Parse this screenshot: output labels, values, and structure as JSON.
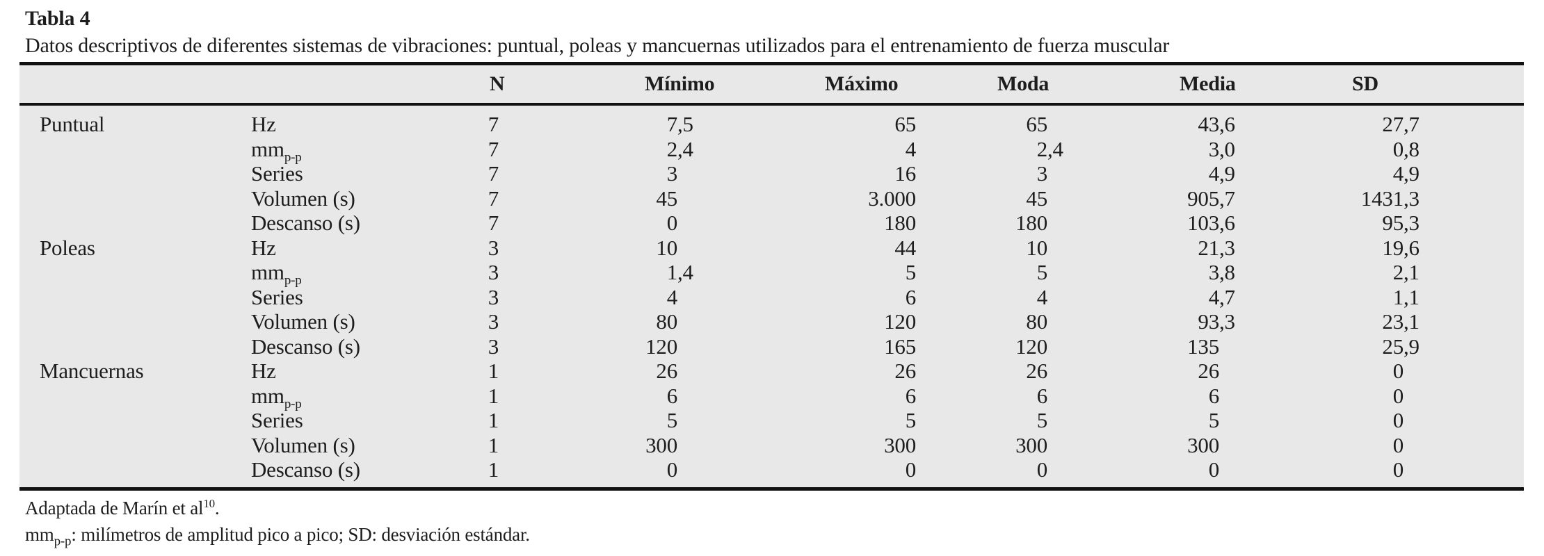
{
  "title": "Tabla 4",
  "subtitle": "Datos descriptivos de diferentes sistemas de vibraciones: puntual, poleas y mancuernas utilizados para el entrenamiento de fuerza muscular",
  "table": {
    "columns": [
      "N",
      "Mínimo",
      "Máximo",
      "Moda",
      "Media",
      "SD"
    ],
    "column_keys": [
      "n",
      "minimo",
      "maximo",
      "moda",
      "media",
      "sd"
    ],
    "groups": [
      {
        "name": "Puntual",
        "rows": [
          {
            "param": "Hz",
            "sub": "",
            "values": [
              "7",
              "7,5",
              "65",
              "65",
              "43,6",
              "27,7"
            ]
          },
          {
            "param": "mm",
            "sub": "p-p",
            "values": [
              "7",
              "2,4",
              "4",
              "2,4",
              "3,0",
              "0,8"
            ]
          },
          {
            "param": "Series",
            "sub": "",
            "values": [
              "7",
              "3",
              "16",
              "3",
              "4,9",
              "4,9"
            ]
          },
          {
            "param": "Volumen (s)",
            "sub": "",
            "values": [
              "7",
              "45",
              "3.000",
              "45",
              "905,7",
              "1431,3"
            ]
          },
          {
            "param": "Descanso (s)",
            "sub": "",
            "values": [
              "7",
              "0",
              "180",
              "180",
              "103,6",
              "95,3"
            ]
          }
        ]
      },
      {
        "name": "Poleas",
        "rows": [
          {
            "param": "Hz",
            "sub": "",
            "values": [
              "3",
              "10",
              "44",
              "10",
              "21,3",
              "19,6"
            ]
          },
          {
            "param": "mm",
            "sub": "p-p",
            "values": [
              "3",
              "1,4",
              "5",
              "5",
              "3,8",
              "2,1"
            ]
          },
          {
            "param": "Series",
            "sub": "",
            "values": [
              "3",
              "4",
              "6",
              "4",
              "4,7",
              "1,1"
            ]
          },
          {
            "param": "Volumen (s)",
            "sub": "",
            "values": [
              "3",
              "80",
              "120",
              "80",
              "93,3",
              "23,1"
            ]
          },
          {
            "param": "Descanso (s)",
            "sub": "",
            "values": [
              "3",
              "120",
              "165",
              "120",
              "135",
              "25,9"
            ]
          }
        ]
      },
      {
        "name": "Mancuernas",
        "rows": [
          {
            "param": "Hz",
            "sub": "",
            "values": [
              "1",
              "26",
              "26",
              "26",
              "26",
              "0"
            ]
          },
          {
            "param": "mm",
            "sub": "p-p",
            "values": [
              "1",
              "6",
              "6",
              "6",
              "6",
              "0"
            ]
          },
          {
            "param": "Series",
            "sub": "",
            "values": [
              "1",
              "5",
              "5",
              "5",
              "5",
              "0"
            ]
          },
          {
            "param": "Volumen (s)",
            "sub": "",
            "values": [
              "1",
              "300",
              "300",
              "300",
              "300",
              "0"
            ]
          },
          {
            "param": "Descanso (s)",
            "sub": "",
            "values": [
              "1",
              "0",
              "0",
              "0",
              "0",
              "0"
            ]
          }
        ]
      }
    ]
  },
  "notes": {
    "adapted": {
      "text": "Adaptada de Marín et al",
      "sup": "10",
      "after": "."
    },
    "abbrev": {
      "base": "mm",
      "sub": "p-p",
      "rest": ": milímetros de amplitud pico a pico; SD: desviación estándar."
    }
  },
  "colors": {
    "page_bg": "#ffffff",
    "band": "#e8e8e8",
    "rule": "#111111",
    "text": "#1d1d1d"
  }
}
